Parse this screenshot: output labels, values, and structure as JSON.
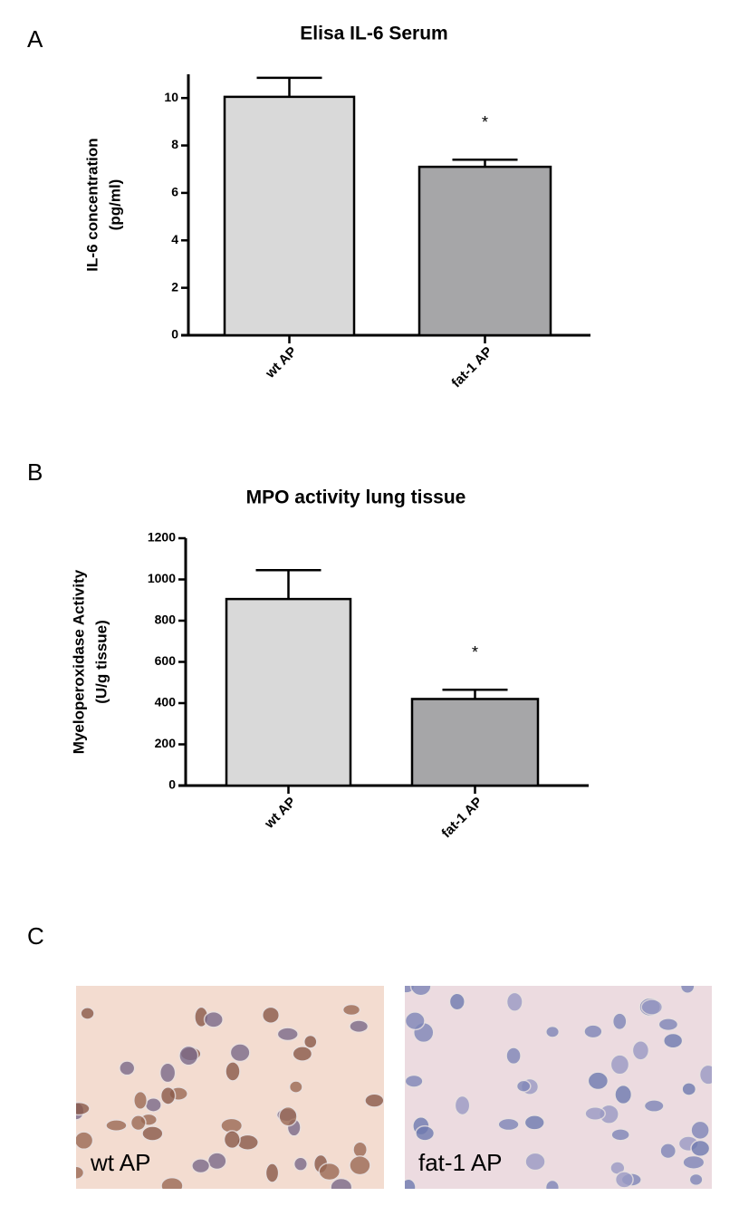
{
  "panels": [
    "A",
    "B",
    "C"
  ],
  "chart_data": [
    {
      "type": "bar",
      "title": "Elisa  IL-6 Serum",
      "ylabel": [
        "IL-6 concentration",
        "(pg/ml)"
      ],
      "categories": [
        "wt AP",
        "fat-1 AP"
      ],
      "values": [
        10.05,
        7.1
      ],
      "errors": [
        0.8,
        0.3
      ],
      "colors": [
        "#d9d9d9",
        "#a6a6a8"
      ],
      "significance": [
        null,
        "*"
      ],
      "ylim": [
        0,
        11
      ],
      "yticks": [
        0,
        2,
        4,
        6,
        8,
        10
      ]
    },
    {
      "type": "bar",
      "title": "MPO activity lung tissue",
      "ylabel": [
        "Myeloperoxidase Activity",
        "(U/g tissue)"
      ],
      "categories": [
        "wt AP",
        "fat-1 AP"
      ],
      "values": [
        905,
        420
      ],
      "errors": [
        140,
        45
      ],
      "colors": [
        "#d9d9d9",
        "#a6a6a8"
      ],
      "significance": [
        null,
        "*"
      ],
      "ylim": [
        0,
        1200
      ],
      "yticks": [
        0,
        200,
        400,
        600,
        800,
        1000,
        1200
      ]
    }
  ],
  "micrographs": [
    {
      "label": "wt AP"
    },
    {
      "label": "fat-1 AP"
    }
  ]
}
